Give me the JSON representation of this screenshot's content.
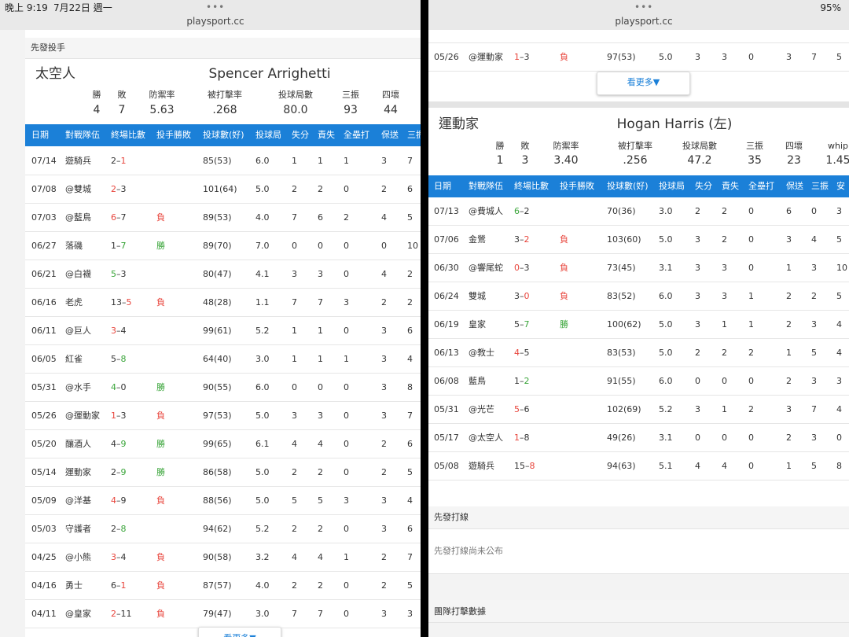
{
  "status_bar": {
    "time": "晚上 9:19",
    "date": "7月22日 週一",
    "battery": "95%"
  },
  "left": {
    "url": "playsport.cc",
    "section": "先發投手",
    "team": "太空人",
    "pitcher": "Spencer Arrighetti",
    "stat_labels": [
      "勝",
      "敗",
      "防禦率",
      "被打擊率",
      "投球局數",
      "三振",
      "四壞"
    ],
    "stat_values": [
      "4",
      "7",
      "5.63",
      ".268",
      "80.0",
      "93",
      "44"
    ],
    "columns": [
      "日期",
      "對戰隊伍",
      "終場比數",
      "投手勝敗",
      "投球數(好)",
      "投球局",
      "失分",
      "責失",
      "全壘打",
      "保送",
      "三振"
    ],
    "rows": [
      {
        "date": "07/14",
        "opp": "遊騎兵",
        "score": [
          "2",
          "–",
          "1"
        ],
        "score_color": [
          "#333",
          "#333",
          "#e8453c"
        ],
        "stats": [
          "85(53)",
          "6.0",
          "1",
          "1",
          "1",
          "3",
          "7"
        ]
      },
      {
        "date": "07/08",
        "opp": "@雙城",
        "score": [
          "2",
          "–",
          "3"
        ],
        "score_color": [
          "#e8453c",
          "#333",
          "#333"
        ],
        "stats": [
          "101(64)",
          "5.0",
          "2",
          "2",
          "0",
          "2",
          "6"
        ]
      },
      {
        "date": "07/03",
        "opp": "@藍鳥",
        "score": [
          "6",
          "–",
          "7"
        ],
        "score_color": [
          "#e8453c",
          "#333",
          "#333"
        ],
        "result": "負",
        "result_color": "#e8453c",
        "stats": [
          "89(53)",
          "4.0",
          "7",
          "6",
          "2",
          "4",
          "5"
        ]
      },
      {
        "date": "06/27",
        "opp": "落磯",
        "score": [
          "1",
          "–",
          "7"
        ],
        "score_color": [
          "#333",
          "#333",
          "#3aa53a"
        ],
        "result": "勝",
        "result_color": "#3aa53a",
        "stats": [
          "89(70)",
          "7.0",
          "0",
          "0",
          "0",
          "0",
          "10"
        ]
      },
      {
        "date": "06/21",
        "opp": "@白襪",
        "score": [
          "5",
          "–",
          "3"
        ],
        "score_color": [
          "#3aa53a",
          "#333",
          "#333"
        ],
        "stats": [
          "80(47)",
          "4.1",
          "3",
          "3",
          "0",
          "4",
          "2"
        ]
      },
      {
        "date": "06/16",
        "opp": "老虎",
        "score": [
          "13",
          "–",
          "5"
        ],
        "score_color": [
          "#333",
          "#333",
          "#e8453c"
        ],
        "result": "負",
        "result_color": "#e8453c",
        "stats": [
          "48(28)",
          "1.1",
          "7",
          "7",
          "3",
          "2",
          "2"
        ]
      },
      {
        "date": "06/11",
        "opp": "@巨人",
        "score": [
          "3",
          "–",
          "4"
        ],
        "score_color": [
          "#e8453c",
          "#333",
          "#333"
        ],
        "stats": [
          "99(61)",
          "5.2",
          "1",
          "1",
          "0",
          "3",
          "6"
        ]
      },
      {
        "date": "06/05",
        "opp": "紅雀",
        "score": [
          "5",
          "–",
          "8"
        ],
        "score_color": [
          "#333",
          "#333",
          "#3aa53a"
        ],
        "stats": [
          "64(40)",
          "3.0",
          "1",
          "1",
          "1",
          "3",
          "4"
        ]
      },
      {
        "date": "05/31",
        "opp": "@水手",
        "score": [
          "4",
          "–",
          "0"
        ],
        "score_color": [
          "#3aa53a",
          "#333",
          "#333"
        ],
        "result": "勝",
        "result_color": "#3aa53a",
        "stats": [
          "90(55)",
          "6.0",
          "0",
          "0",
          "0",
          "3",
          "8"
        ]
      },
      {
        "date": "05/26",
        "opp": "@運動家",
        "score": [
          "1",
          "–",
          "3"
        ],
        "score_color": [
          "#e8453c",
          "#333",
          "#333"
        ],
        "result": "負",
        "result_color": "#e8453c",
        "stats": [
          "97(53)",
          "5.0",
          "3",
          "3",
          "0",
          "3",
          "7"
        ]
      },
      {
        "date": "05/20",
        "opp": "釀酒人",
        "score": [
          "4",
          "–",
          "9"
        ],
        "score_color": [
          "#333",
          "#333",
          "#3aa53a"
        ],
        "result": "勝",
        "result_color": "#3aa53a",
        "stats": [
          "99(65)",
          "6.1",
          "4",
          "4",
          "0",
          "2",
          "6"
        ]
      },
      {
        "date": "05/14",
        "opp": "運動家",
        "score": [
          "2",
          "–",
          "9"
        ],
        "score_color": [
          "#333",
          "#333",
          "#3aa53a"
        ],
        "result": "勝",
        "result_color": "#3aa53a",
        "stats": [
          "86(58)",
          "5.0",
          "2",
          "2",
          "0",
          "2",
          "5"
        ]
      },
      {
        "date": "05/09",
        "opp": "@洋基",
        "score": [
          "4",
          "–",
          "9"
        ],
        "score_color": [
          "#e8453c",
          "#333",
          "#333"
        ],
        "result": "負",
        "result_color": "#e8453c",
        "stats": [
          "88(56)",
          "5.0",
          "5",
          "5",
          "3",
          "3",
          "4"
        ]
      },
      {
        "date": "05/03",
        "opp": "守護者",
        "score": [
          "2",
          "–",
          "8"
        ],
        "score_color": [
          "#333",
          "#333",
          "#3aa53a"
        ],
        "stats": [
          "94(62)",
          "5.2",
          "2",
          "2",
          "0",
          "3",
          "6"
        ]
      },
      {
        "date": "04/25",
        "opp": "@小熊",
        "score": [
          "3",
          "–",
          "4"
        ],
        "score_color": [
          "#e8453c",
          "#333",
          "#333"
        ],
        "result": "負",
        "result_color": "#e8453c",
        "stats": [
          "90(58)",
          "3.2",
          "4",
          "4",
          "1",
          "2",
          "7"
        ]
      },
      {
        "date": "04/16",
        "opp": "勇士",
        "score": [
          "6",
          "–",
          "1"
        ],
        "score_color": [
          "#333",
          "#333",
          "#e8453c"
        ],
        "result": "負",
        "result_color": "#e8453c",
        "stats": [
          "87(57)",
          "4.0",
          "2",
          "2",
          "0",
          "2",
          "5"
        ]
      },
      {
        "date": "04/11",
        "opp": "@皇家",
        "score": [
          "2",
          "–",
          "11"
        ],
        "score_color": [
          "#e8453c",
          "#333",
          "#333"
        ],
        "result": "負",
        "result_color": "#e8453c",
        "stats": [
          "79(47)",
          "3.0",
          "7",
          "7",
          "0",
          "3",
          "3"
        ]
      }
    ],
    "more": "看更多▼"
  },
  "right": {
    "url": "playsport.cc",
    "top_row": {
      "date": "05/26",
      "opp": "@運動家",
      "score": [
        "1",
        "–",
        "3"
      ],
      "score_color": [
        "#e8453c",
        "#333",
        "#333"
      ],
      "result": "負",
      "result_color": "#e8453c",
      "stats": [
        "97(53)",
        "5.0",
        "3",
        "3",
        "0",
        "3",
        "7",
        "5"
      ]
    },
    "more": "看更多▼",
    "team": "運動家",
    "pitcher": "Hogan Harris (左)",
    "stat_labels": [
      "勝",
      "敗",
      "防禦率",
      "被打擊率",
      "投球局數",
      "三振",
      "四壞",
      "whip"
    ],
    "stat_values": [
      "1",
      "3",
      "3.40",
      ".256",
      "47.2",
      "35",
      "23",
      "1.45"
    ],
    "columns": [
      "日期",
      "對戰隊伍",
      "終場比數",
      "投手勝敗",
      "投球數(好)",
      "投球局",
      "失分",
      "責失",
      "全壘打",
      "保送",
      "三振",
      "安"
    ],
    "rows": [
      {
        "date": "07/13",
        "opp": "@費城人",
        "score": [
          "6",
          "–",
          "2"
        ],
        "score_color": [
          "#3aa53a",
          "#333",
          "#333"
        ],
        "stats": [
          "70(36)",
          "3.0",
          "2",
          "2",
          "0",
          "6",
          "0",
          "3"
        ]
      },
      {
        "date": "07/06",
        "opp": "金鶯",
        "score": [
          "3",
          "–",
          "2"
        ],
        "score_color": [
          "#333",
          "#333",
          "#e8453c"
        ],
        "result": "負",
        "result_color": "#e8453c",
        "stats": [
          "103(60)",
          "5.0",
          "3",
          "2",
          "0",
          "3",
          "4",
          "5"
        ]
      },
      {
        "date": "06/30",
        "opp": "@響尾蛇",
        "score": [
          "0",
          "–",
          "3"
        ],
        "score_color": [
          "#e8453c",
          "#333",
          "#333"
        ],
        "result": "負",
        "result_color": "#e8453c",
        "stats": [
          "73(45)",
          "3.1",
          "3",
          "3",
          "0",
          "1",
          "3",
          "10"
        ]
      },
      {
        "date": "06/24",
        "opp": "雙城",
        "score": [
          "3",
          "–",
          "0"
        ],
        "score_color": [
          "#333",
          "#333",
          "#e8453c"
        ],
        "result": "負",
        "result_color": "#e8453c",
        "stats": [
          "83(52)",
          "6.0",
          "3",
          "3",
          "1",
          "2",
          "2",
          "5"
        ]
      },
      {
        "date": "06/19",
        "opp": "皇家",
        "score": [
          "5",
          "–",
          "7"
        ],
        "score_color": [
          "#333",
          "#333",
          "#3aa53a"
        ],
        "result": "勝",
        "result_color": "#3aa53a",
        "stats": [
          "100(62)",
          "5.0",
          "3",
          "1",
          "1",
          "2",
          "3",
          "4"
        ]
      },
      {
        "date": "06/13",
        "opp": "@教士",
        "score": [
          "4",
          "–",
          "5"
        ],
        "score_color": [
          "#e8453c",
          "#333",
          "#333"
        ],
        "stats": [
          "83(53)",
          "5.0",
          "2",
          "2",
          "2",
          "1",
          "5",
          "4"
        ]
      },
      {
        "date": "06/08",
        "opp": "藍鳥",
        "score": [
          "1",
          "–",
          "2"
        ],
        "score_color": [
          "#333",
          "#333",
          "#3aa53a"
        ],
        "stats": [
          "91(55)",
          "6.0",
          "0",
          "0",
          "0",
          "2",
          "3",
          "3"
        ]
      },
      {
        "date": "05/31",
        "opp": "@光芒",
        "score": [
          "5",
          "–",
          "6"
        ],
        "score_color": [
          "#e8453c",
          "#333",
          "#333"
        ],
        "stats": [
          "102(69)",
          "5.2",
          "3",
          "1",
          "2",
          "3",
          "7",
          "4"
        ]
      },
      {
        "date": "05/17",
        "opp": "@太空人",
        "score": [
          "1",
          "–",
          "8"
        ],
        "score_color": [
          "#e8453c",
          "#333",
          "#333"
        ],
        "stats": [
          "49(26)",
          "3.1",
          "0",
          "0",
          "0",
          "2",
          "3",
          "0"
        ]
      },
      {
        "date": "05/08",
        "opp": "遊騎兵",
        "score": [
          "15",
          "–",
          "8"
        ],
        "score_color": [
          "#333",
          "#333",
          "#e8453c"
        ],
        "stats": [
          "94(63)",
          "5.1",
          "4",
          "4",
          "0",
          "1",
          "5",
          "8"
        ]
      }
    ],
    "lineup_title": "先發打線",
    "lineup_note": "先發打線尚未公布",
    "team_batting_title": "團隊打擊數據"
  }
}
